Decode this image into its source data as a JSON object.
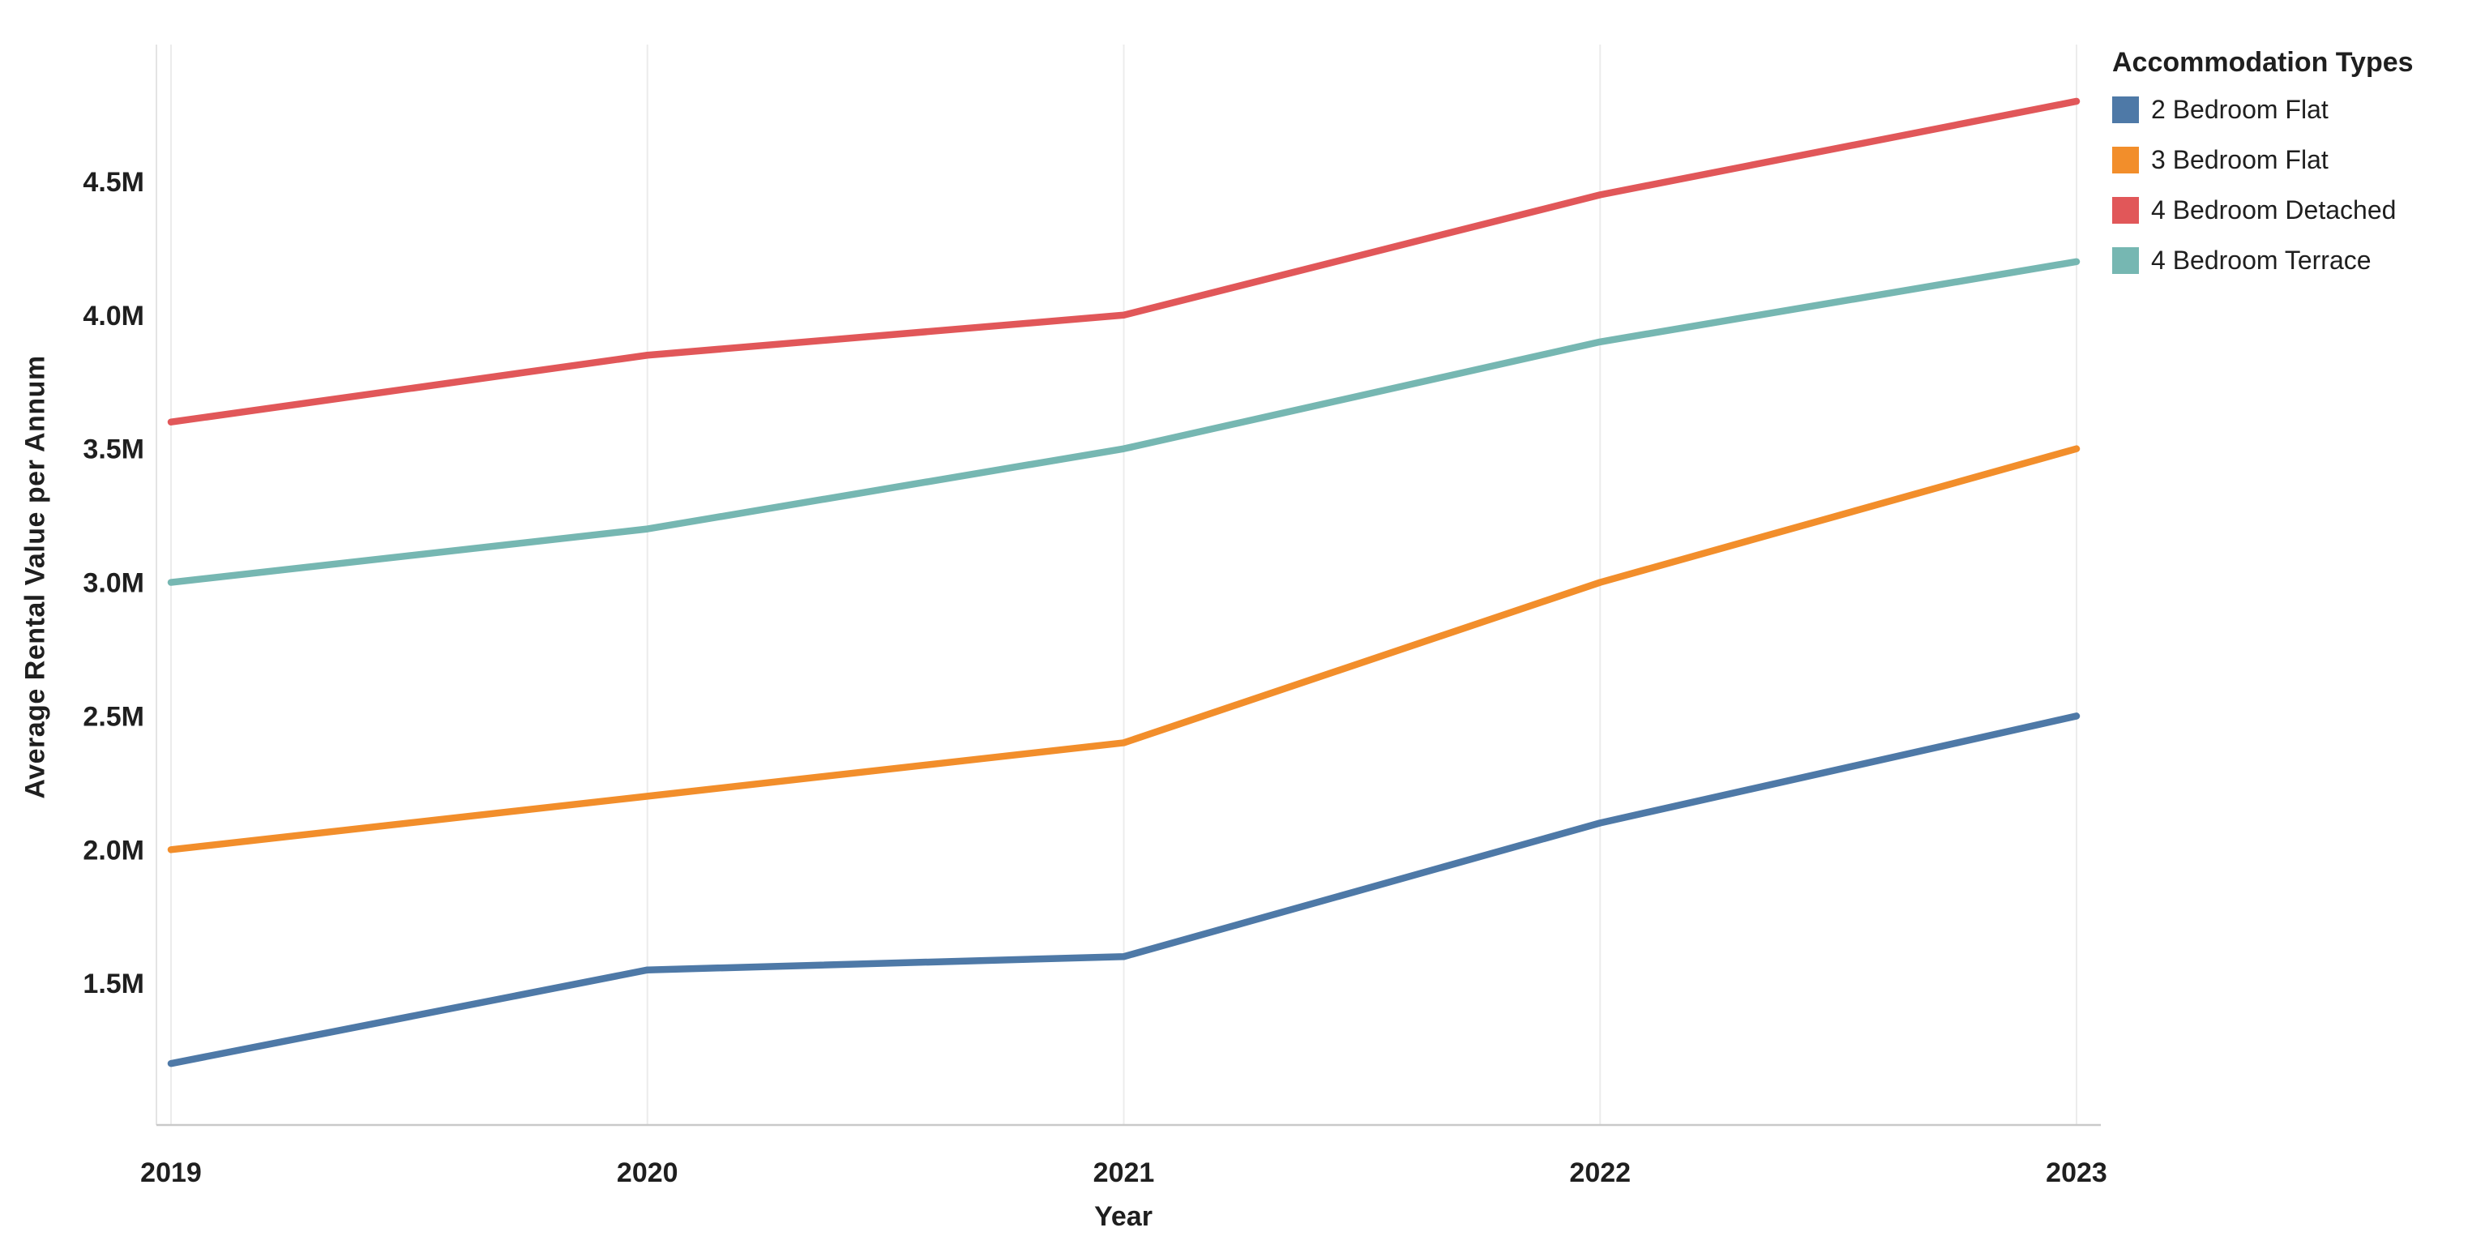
{
  "chart_data": {
    "type": "line",
    "title": "",
    "xlabel": "Year",
    "ylabel": "Average Rental Value per Annum",
    "legend_title": "Accommodation Types",
    "legend_position": "top-right",
    "grid": "vertical",
    "x": [
      2019,
      2020,
      2021,
      2022,
      2023
    ],
    "series": [
      {
        "name": "2 Bedroom Flat",
        "color": "#4e79a7",
        "values": [
          1200000,
          1550000,
          1600000,
          2100000,
          2500000
        ]
      },
      {
        "name": "3 Bedroom Flat",
        "color": "#f28e2b",
        "values": [
          2000000,
          2200000,
          2400000,
          3000000,
          3500000
        ]
      },
      {
        "name": "4 Bedroom Detached",
        "color": "#e15759",
        "values": [
          3600000,
          3850000,
          4000000,
          4450000,
          4800000
        ]
      },
      {
        "name": "4 Bedroom Terrace",
        "color": "#76b7b2",
        "values": [
          3000000,
          3200000,
          3500000,
          3900000,
          4200000
        ]
      }
    ],
    "yticks": [
      {
        "value": 1500000,
        "label": "1.5M"
      },
      {
        "value": 2000000,
        "label": "2.0M"
      },
      {
        "value": 2500000,
        "label": "2.5M"
      },
      {
        "value": 3000000,
        "label": "3.0M"
      },
      {
        "value": 3500000,
        "label": "3.5M"
      },
      {
        "value": 4000000,
        "label": "4.0M"
      },
      {
        "value": 4500000,
        "label": "4.5M"
      }
    ],
    "ylim": [
      970000,
      5000000
    ]
  },
  "colors": {
    "background": "#ffffff",
    "gridline": "#ececec",
    "axis_line": "#c9c9c9",
    "plot_border": "#e4e4e4",
    "text": "#1f1f1f"
  }
}
